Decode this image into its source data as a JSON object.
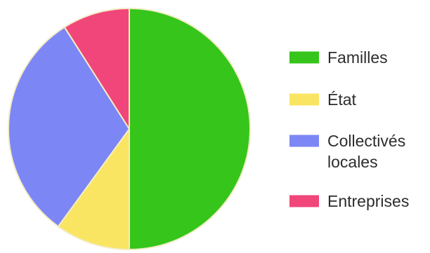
{
  "chart_data": {
    "type": "pie",
    "categories": [
      "Familles",
      "État",
      "Collectivés locales",
      "Entreprises"
    ],
    "values": [
      50,
      10,
      31,
      9
    ],
    "colors": [
      "#35c51b",
      "#f9e562",
      "#7c86f4",
      "#f0467a"
    ],
    "legend": {
      "placement": "right",
      "entries": [
        {
          "lines": [
            "Familles"
          ]
        },
        {
          "lines": [
            "État"
          ]
        },
        {
          "lines": [
            "Collectivés",
            "locales"
          ]
        },
        {
          "lines": [
            "Entreprises"
          ]
        }
      ]
    }
  }
}
